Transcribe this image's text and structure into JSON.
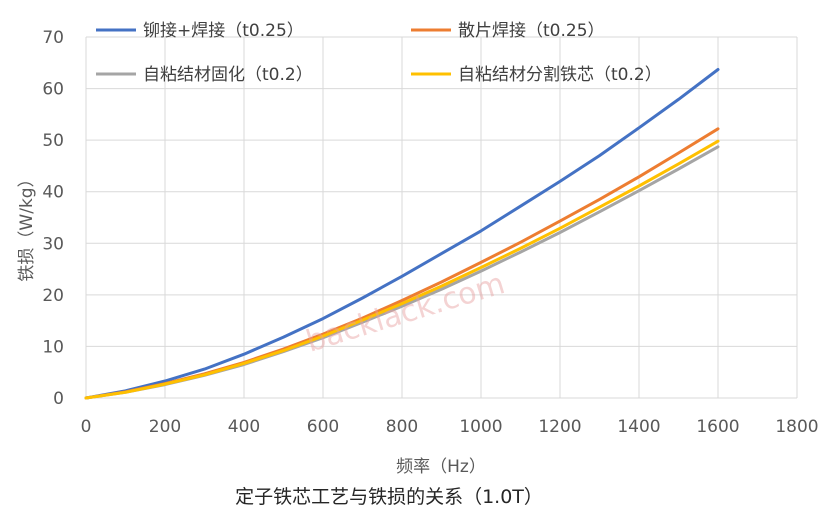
{
  "chart_data": {
    "type": "line",
    "caption": "定子铁芯工艺与铁损的关系（1.0T）",
    "xlabel": "频率（Hz）",
    "ylabel": "铁损（W/kg）",
    "xlim": [
      0,
      1800
    ],
    "ylim": [
      0,
      70
    ],
    "xticks": [
      "0",
      "200",
      "400",
      "600",
      "800",
      "1000",
      "1200",
      "1400",
      "1600",
      "1800"
    ],
    "yticks": [
      "0",
      "10",
      "20",
      "30",
      "40",
      "50",
      "60",
      "70"
    ],
    "grid": true,
    "legend_position": "top",
    "x": [
      0,
      100,
      200,
      300,
      400,
      500,
      600,
      700,
      800,
      900,
      1000,
      1100,
      1200,
      1300,
      1400,
      1500,
      1600
    ],
    "series": [
      {
        "name": "铆接+焊接（t0.25）",
        "color": "#4472C4",
        "values": [
          0,
          1.4,
          3.3,
          5.6,
          8.5,
          11.8,
          15.4,
          19.4,
          23.6,
          28.0,
          32.4,
          37.2,
          42.0,
          47.0,
          52.4,
          57.9,
          63.7
        ]
      },
      {
        "name": "散片焊接（t0.25）",
        "color": "#ED7D31",
        "values": [
          0,
          1.2,
          2.8,
          4.7,
          6.9,
          9.5,
          12.4,
          15.5,
          18.9,
          22.5,
          26.3,
          30.2,
          34.3,
          38.5,
          42.9,
          47.5,
          52.2
        ]
      },
      {
        "name": "自粘结材固化（t0.2）",
        "color": "#A5A5A5",
        "values": [
          0,
          1.1,
          2.6,
          4.4,
          6.5,
          9.0,
          11.7,
          14.7,
          17.8,
          21.1,
          24.6,
          28.3,
          32.1,
          36.1,
          40.2,
          44.4,
          48.7
        ]
      },
      {
        "name": "自粘结材分割铁芯（t0.2）",
        "color": "#FFC000",
        "values": [
          0,
          1.1,
          2.7,
          4.5,
          6.7,
          9.2,
          12.0,
          15.1,
          18.3,
          21.7,
          25.3,
          29.0,
          32.9,
          37.0,
          41.1,
          45.4,
          49.8
        ]
      }
    ],
    "watermark": "backlack.com"
  }
}
